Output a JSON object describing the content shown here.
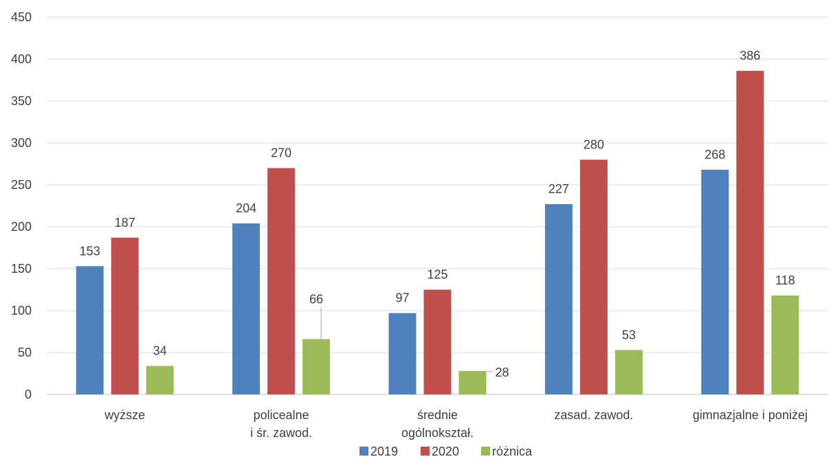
{
  "chart_data": {
    "type": "bar",
    "categories": [
      [
        "wyższe"
      ],
      [
        "policealne",
        "i śr. zawod."
      ],
      [
        "średnie",
        "ogólnokształ."
      ],
      [
        "zasad. zawod."
      ],
      [
        "gimnazjalne i poniżej"
      ]
    ],
    "series": [
      {
        "name": "2019",
        "color": "#4f81bd",
        "values": [
          153,
          204,
          97,
          227,
          268
        ]
      },
      {
        "name": "2020",
        "color": "#c0504d",
        "values": [
          187,
          270,
          125,
          280,
          386
        ]
      },
      {
        "name": "różnica",
        "color": "#9bbb59",
        "values": [
          34,
          66,
          28,
          53,
          118
        ]
      }
    ],
    "yticks": [
      0,
      50,
      100,
      150,
      200,
      250,
      300,
      350,
      400,
      450
    ],
    "ylim": [
      0,
      450
    ],
    "grid": true,
    "legend_position": "bottom",
    "title": "",
    "xlabel": "",
    "ylabel": ""
  }
}
